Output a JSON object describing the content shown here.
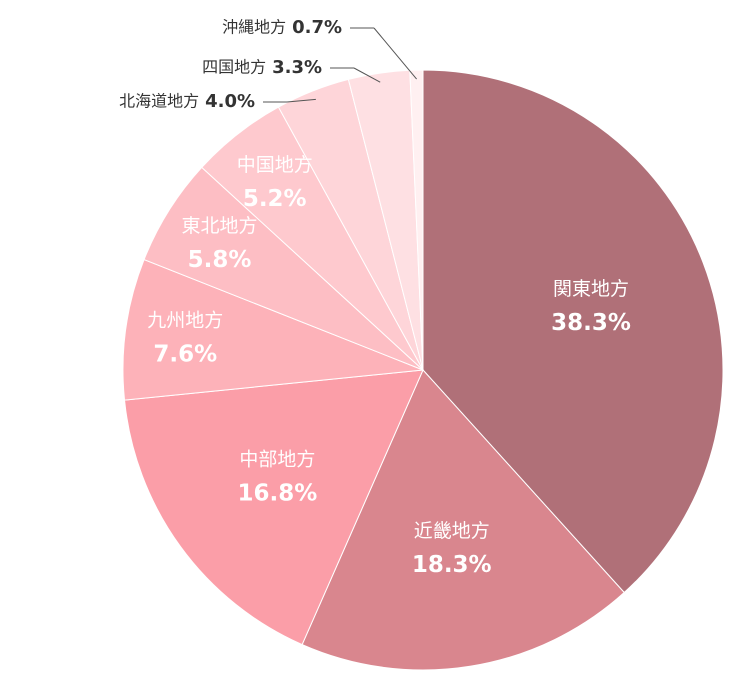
{
  "chart_data": {
    "type": "pie",
    "categories": [
      "関東地方",
      "近畿地方",
      "中部地方",
      "九州地方",
      "東北地方",
      "中国地方",
      "北海道地方",
      "四国地方",
      "沖縄地方"
    ],
    "values": [
      38.3,
      18.3,
      16.8,
      7.6,
      5.8,
      5.2,
      4.0,
      3.3,
      0.7
    ],
    "value_labels": [
      "38.3%",
      "18.3%",
      "16.8%",
      "7.6%",
      "5.8%",
      "5.2%",
      "4.0%",
      "3.3%",
      "0.7%"
    ],
    "colors": [
      "#b07078",
      "#d9868e",
      "#fb9ea8",
      "#fdb2b9",
      "#fdbec4",
      "#fec9ce",
      "#fed5d9",
      "#fee0e3",
      "#fff0f1"
    ]
  }
}
